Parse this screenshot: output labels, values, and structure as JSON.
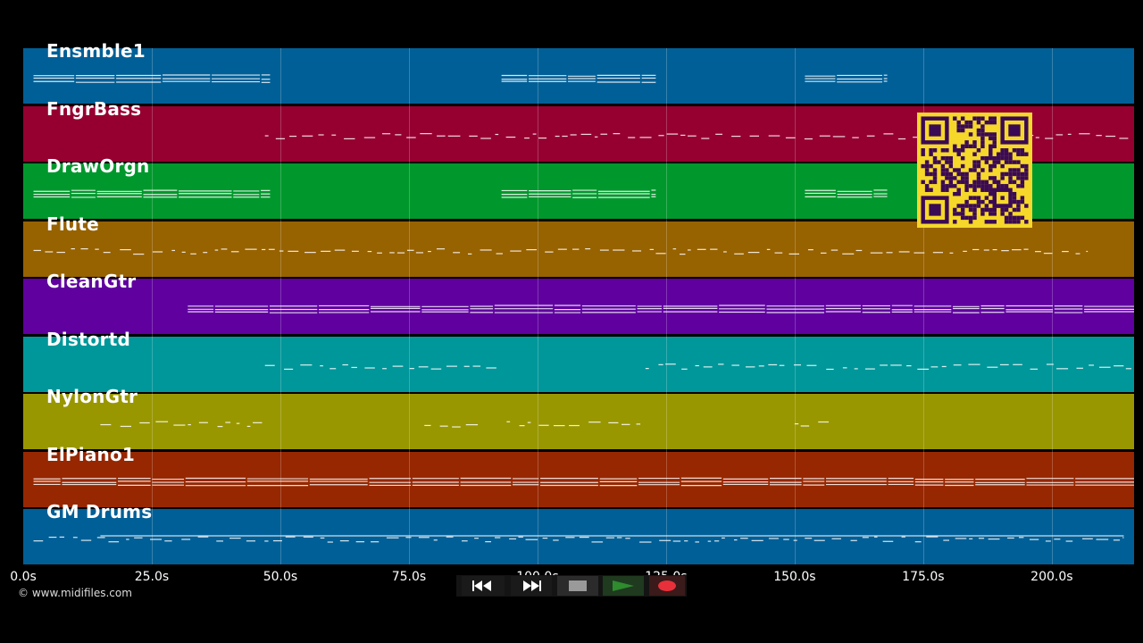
{
  "tracks": [
    {
      "name": "Ensmble1",
      "color": "#005f97"
    },
    {
      "name": "FngrBass",
      "color": "#950031"
    },
    {
      "name": "DrawOrgn",
      "color": "#00982c"
    },
    {
      "name": "Flute",
      "color": "#976200"
    },
    {
      "name": "CleanGtr",
      "color": "#5f009f"
    },
    {
      "name": "Distortd",
      "color": "#00979a"
    },
    {
      "name": "NylonGtr",
      "color": "#999700"
    },
    {
      "name": "ElPiano1",
      "color": "#962700"
    },
    {
      "name": "GM Drums",
      "color": "#005f97"
    }
  ],
  "axis": {
    "ticks": [
      {
        "value": 0,
        "label": "0.0s"
      },
      {
        "value": 25,
        "label": "25.0s"
      },
      {
        "value": 50,
        "label": "50.0s"
      },
      {
        "value": 75,
        "label": "75.0s"
      },
      {
        "value": 100,
        "label": "100.0s"
      },
      {
        "value": 125,
        "label": "125.0s"
      },
      {
        "value": 150,
        "label": "150.0s"
      },
      {
        "value": 175,
        "label": "175.0s"
      },
      {
        "value": 200,
        "label": "200.0s"
      }
    ],
    "max_seconds": 216
  },
  "copyright": "© www.midifiles.com",
  "transport": {
    "rewind_icon": "rewind-icon",
    "fast_forward_icon": "fast-forward-icon",
    "stop_icon": "stop-icon",
    "play_icon": "play-icon",
    "record_icon": "record-icon",
    "play_color": "#2e8b2e",
    "record_color": "#e8303a"
  },
  "qr_code": {
    "color": "#f5d82a",
    "module_color": "#3a0a55"
  },
  "note_segments": [
    {
      "track": 0,
      "start": 2,
      "end": 48
    },
    {
      "track": 0,
      "start": 93,
      "end": 123
    },
    {
      "track": 0,
      "start": 152,
      "end": 168
    },
    {
      "track": 1,
      "start": 47,
      "end": 216
    },
    {
      "track": 2,
      "start": 2,
      "end": 48
    },
    {
      "track": 2,
      "start": 93,
      "end": 123
    },
    {
      "track": 2,
      "start": 152,
      "end": 168
    },
    {
      "track": 3,
      "start": 2,
      "end": 207
    },
    {
      "track": 4,
      "start": 32,
      "end": 216
    },
    {
      "track": 5,
      "start": 47,
      "end": 92
    },
    {
      "track": 5,
      "start": 121,
      "end": 216
    },
    {
      "track": 6,
      "start": 15,
      "end": 48
    },
    {
      "track": 6,
      "start": 78,
      "end": 90
    },
    {
      "track": 6,
      "start": 94,
      "end": 120
    },
    {
      "track": 6,
      "start": 150,
      "end": 157
    },
    {
      "track": 7,
      "start": 2,
      "end": 216
    },
    {
      "track": 8,
      "start": 2,
      "end": 214
    }
  ]
}
